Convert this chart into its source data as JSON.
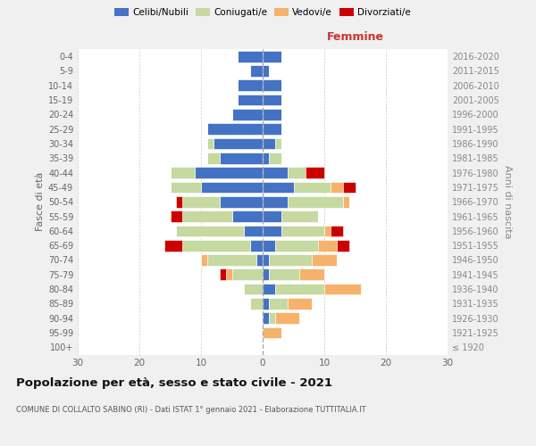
{
  "age_groups": [
    "100+",
    "95-99",
    "90-94",
    "85-89",
    "80-84",
    "75-79",
    "70-74",
    "65-69",
    "60-64",
    "55-59",
    "50-54",
    "45-49",
    "40-44",
    "35-39",
    "30-34",
    "25-29",
    "20-24",
    "15-19",
    "10-14",
    "5-9",
    "0-4"
  ],
  "birth_years": [
    "≤ 1920",
    "1921-1925",
    "1926-1930",
    "1931-1935",
    "1936-1940",
    "1941-1945",
    "1946-1950",
    "1951-1955",
    "1956-1960",
    "1961-1965",
    "1966-1970",
    "1971-1975",
    "1976-1980",
    "1981-1985",
    "1986-1990",
    "1991-1995",
    "1996-2000",
    "2001-2005",
    "2006-2010",
    "2011-2015",
    "2016-2020"
  ],
  "males": {
    "celibe": [
      0,
      0,
      0,
      0,
      0,
      0,
      1,
      2,
      3,
      5,
      7,
      10,
      11,
      7,
      8,
      9,
      5,
      4,
      4,
      2,
      4
    ],
    "coniugato": [
      0,
      0,
      0,
      2,
      3,
      5,
      8,
      11,
      11,
      8,
      6,
      5,
      4,
      2,
      1,
      0,
      0,
      0,
      0,
      0,
      0
    ],
    "vedovo": [
      0,
      0,
      0,
      0,
      0,
      1,
      1,
      0,
      0,
      0,
      0,
      0,
      0,
      0,
      0,
      0,
      0,
      0,
      0,
      0,
      0
    ],
    "divorziato": [
      0,
      0,
      0,
      0,
      0,
      1,
      0,
      3,
      0,
      2,
      1,
      0,
      0,
      0,
      0,
      0,
      0,
      0,
      0,
      0,
      0
    ]
  },
  "females": {
    "nubile": [
      0,
      0,
      1,
      1,
      2,
      1,
      1,
      2,
      3,
      3,
      4,
      5,
      4,
      1,
      2,
      3,
      3,
      3,
      3,
      1,
      3
    ],
    "coniugata": [
      0,
      0,
      1,
      3,
      8,
      5,
      7,
      7,
      7,
      6,
      9,
      6,
      3,
      2,
      1,
      0,
      0,
      0,
      0,
      0,
      0
    ],
    "vedova": [
      0,
      3,
      4,
      4,
      6,
      4,
      4,
      3,
      1,
      0,
      1,
      2,
      0,
      0,
      0,
      0,
      0,
      0,
      0,
      0,
      0
    ],
    "divorziata": [
      0,
      0,
      0,
      0,
      0,
      0,
      0,
      2,
      2,
      0,
      0,
      2,
      3,
      0,
      0,
      0,
      0,
      0,
      0,
      0,
      0
    ]
  },
  "colors": {
    "celibe": "#4472c4",
    "coniugato": "#c5d9a0",
    "vedovo": "#f6b26b",
    "divorziato": "#cc0000"
  },
  "title": "Popolazione per età, sesso e stato civile - 2021",
  "subtitle": "COMUNE DI COLLALTO SABINO (RI) - Dati ISTAT 1° gennaio 2021 - Elaborazione TUTTITALIA.IT",
  "xlabel_right": "Femmine",
  "ylabel_left": "Fasce di età",
  "ylabel_right": "Anni di nascita",
  "xlim": 30,
  "background_color": "#f0f0f0",
  "plot_background": "#ffffff",
  "grid_color": "#cccccc"
}
